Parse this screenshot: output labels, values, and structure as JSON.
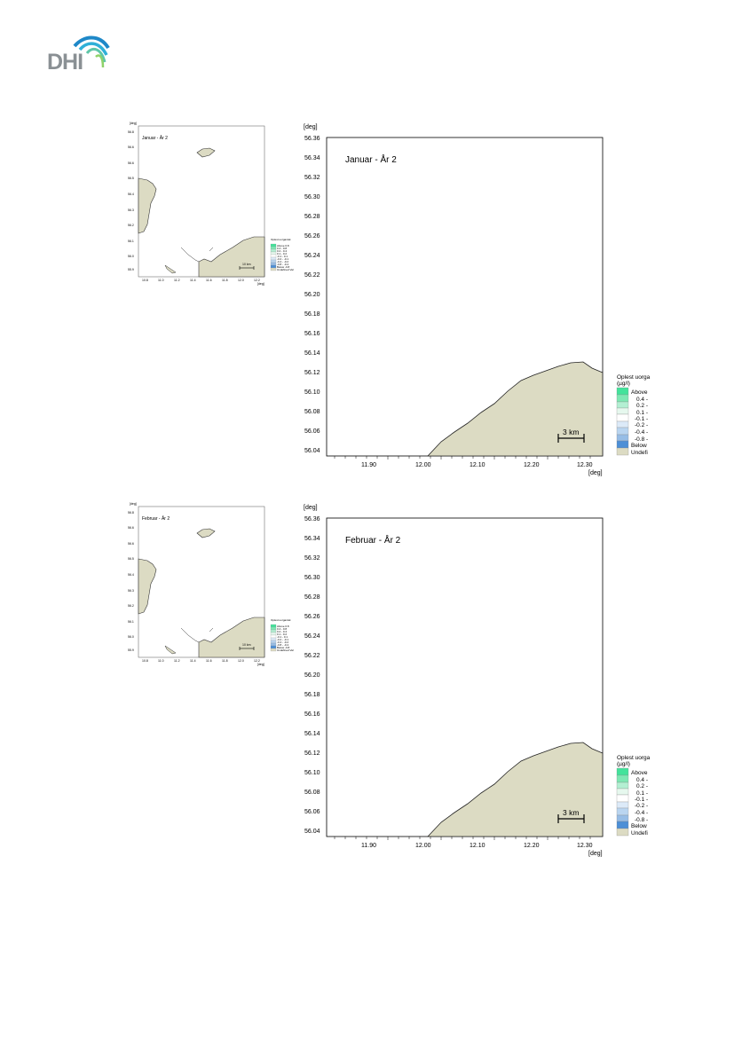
{
  "logo": {
    "text": "DHI"
  },
  "colors": {
    "land": "#dcdbc3",
    "land_stroke": "#333333",
    "legend": [
      "#43e39b",
      "#7ee8b4",
      "#b3efd2",
      "#e6f8ee",
      "#ffffff",
      "#dceaf8",
      "#bad5f0",
      "#97bde6",
      "#6fa6df",
      "#4d8fd6",
      "#dcdbc3"
    ]
  },
  "maps": [
    {
      "title": "Januar - År 2",
      "axis_unit_y": "[deg]",
      "axis_unit_x": "[deg]",
      "y_ticks": [
        "56.36",
        "56.34",
        "56.32",
        "56.30",
        "56.28",
        "56.26",
        "56.24",
        "56.22",
        "56.20",
        "56.18",
        "56.16",
        "56.14",
        "56.12",
        "56.10",
        "56.08",
        "56.06",
        "56.04"
      ],
      "x_ticks": [
        "11.90",
        "12.00",
        "12.10",
        "12.20",
        "12.30"
      ],
      "scale_bar": "3 km",
      "legend_title_1": "Oplest uorga",
      "legend_title_2": "(µg/l)",
      "legend_items": [
        "Above",
        "0.4 -",
        "0.2 -",
        "0.1 -",
        "-0.1 -",
        "-0.2 -",
        "-0.4 -",
        "-0.8 -",
        "Below",
        "Undefi"
      ],
      "overview": {
        "title": "Januar - År 2",
        "axis_unit_y": "[deg]",
        "axis_unit_x": "[deg]",
        "y_ticks": [
          "56.8",
          "56.6",
          "56.6",
          "56.5",
          "56.4",
          "56.3",
          "56.2",
          "56.1",
          "56.0",
          "55.9"
        ],
        "x_ticks": [
          "10.8",
          "11.0",
          "11.2",
          "11.4",
          "11.6",
          "11.8",
          "12.0",
          "12.2"
        ],
        "scale_bar": "10 km",
        "legend_title": "Oplest uorganisk",
        "legend_items": [
          "Above  0.8",
          "0.4 - 0.8",
          "0.2 - 0.4",
          "0.1 - 0.2",
          "-0.1 - 0.1",
          "-0.2 - -0.1",
          "-0.4 - -0.2",
          "-0.8 - -0.4",
          "Below -0.8",
          "Undefined Val"
        ]
      }
    },
    {
      "title": "Februar - År 2",
      "axis_unit_y": "[deg]",
      "axis_unit_x": "[deg]",
      "y_ticks": [
        "56.36",
        "56.34",
        "56.32",
        "56.30",
        "56.28",
        "56.26",
        "56.24",
        "56.22",
        "56.20",
        "56.18",
        "56.16",
        "56.14",
        "56.12",
        "56.10",
        "56.08",
        "56.06",
        "56.04"
      ],
      "x_ticks": [
        "11.90",
        "12.00",
        "12.10",
        "12.20",
        "12.30"
      ],
      "scale_bar": "3 km",
      "legend_title_1": "Oplest uorga",
      "legend_title_2": "(µg/l)",
      "legend_items": [
        "Above",
        "0.4 -",
        "0.2 -",
        "0.1 -",
        "-0.1 -",
        "-0.2 -",
        "-0.4 -",
        "-0.8 -",
        "Below",
        "Undefi"
      ],
      "overview": {
        "title": "Februar - År 2",
        "axis_unit_y": "[deg]",
        "axis_unit_x": "[deg]",
        "y_ticks": [
          "56.8",
          "56.6",
          "56.6",
          "56.5",
          "56.4",
          "56.3",
          "56.2",
          "56.1",
          "56.0",
          "55.9"
        ],
        "x_ticks": [
          "10.8",
          "11.0",
          "11.2",
          "11.4",
          "11.6",
          "11.8",
          "12.0",
          "12.2"
        ],
        "scale_bar": "10 km",
        "legend_title": "Oplest uorganisk",
        "legend_items": [
          "Above  0.8",
          "0.4 - 0.8",
          "0.2 - 0.4",
          "0.1 - 0.2",
          "-0.1 - 0.1",
          "-0.2 - -0.1",
          "-0.4 - -0.2",
          "-0.8 - -0.4",
          "Below -0.8",
          "Undefined Val"
        ]
      }
    }
  ]
}
